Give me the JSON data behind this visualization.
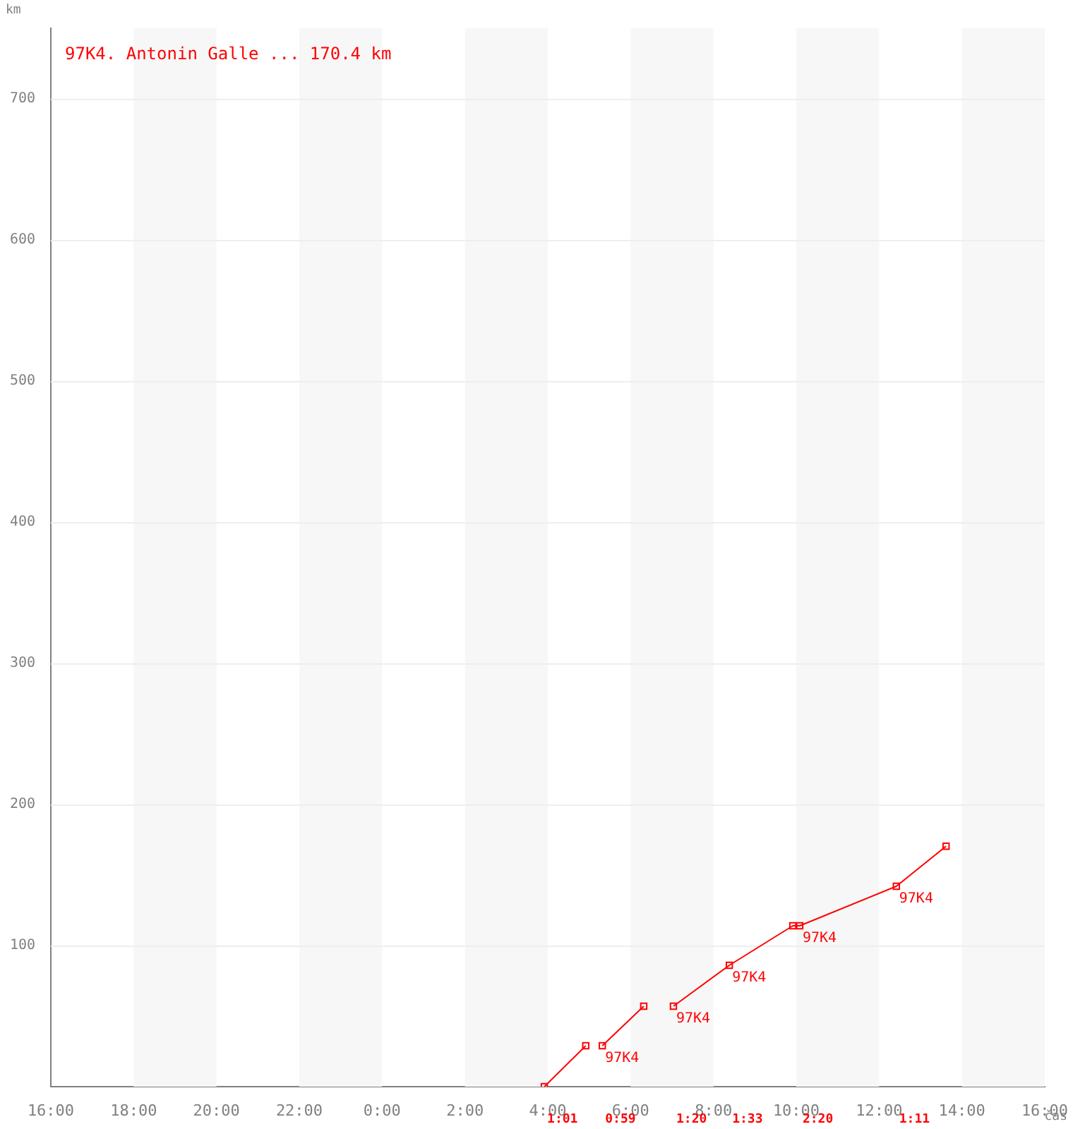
{
  "chart_data": {
    "type": "line",
    "title": "97K4. Antonin Galle ... 170.4 km",
    "xlabel": "čas",
    "ylabel": "km",
    "series": [
      {
        "color": "#ff0000",
        "x": [
          "--01-02T03:55",
          "--01-02T04:55"
        ],
        "values": [
          0,
          29
        ]
      },
      {
        "color": "#ff0000",
        "x": [
          "--01-02T05:19",
          "--01-02T06:19"
        ],
        "values": [
          29,
          57
        ]
      },
      {
        "color": "#ff0000",
        "x": [
          "--01-02T07:02",
          "--01-02T08:23",
          "--01-02T09:55",
          "--01-02T10:05",
          "--01-02T12:25",
          "--01-02T13:37"
        ],
        "values": [
          57,
          86,
          114,
          114,
          142,
          170.4
        ]
      }
    ],
    "xlim": [
      "--01-01T16:00",
      "--01-02T16:00"
    ],
    "xticks": [
      {
        "value": "--01-01T16:00",
        "label": "16:00"
      },
      {
        "value": "--01-01T18:00",
        "label": "18:00"
      },
      {
        "value": "--01-01T20:00",
        "label": "20:00"
      },
      {
        "value": "--01-01T22:00",
        "label": "22:00"
      },
      {
        "value": "--01-02T00:00",
        "label": "0:00"
      },
      {
        "value": "--01-02T02:00",
        "label": "2:00"
      },
      {
        "value": "--01-02T04:00",
        "label": "4:00"
      },
      {
        "value": "--01-02T06:00",
        "label": "6:00"
      },
      {
        "value": "--01-02T08:00",
        "label": "8:00"
      },
      {
        "value": "--01-02T10:00",
        "label": "10:00"
      },
      {
        "value": "--01-02T12:00",
        "label": "12:00"
      },
      {
        "value": "--01-02T14:00",
        "label": "14:00"
      },
      {
        "value": "--01-02T16:00",
        "label": "16:00"
      }
    ],
    "ylim": [
      0,
      750
    ],
    "yticks": [
      100,
      200,
      300,
      400,
      500,
      600,
      700
    ],
    "bands": [
      {
        "axis": "x",
        "from": "--01-01T18:00",
        "to": "--01-01T20:00",
        "color": "#f7f7f7"
      },
      {
        "axis": "x",
        "from": "--01-01T22:00",
        "to": "--01-02T00:00",
        "color": "#f7f7f7"
      },
      {
        "axis": "x",
        "from": "--01-02T02:00",
        "to": "--01-02T04:00",
        "color": "#f7f7f7"
      },
      {
        "axis": "x",
        "from": "--01-02T06:00",
        "to": "--01-02T08:00",
        "color": "#f7f7f7"
      },
      {
        "axis": "x",
        "from": "--01-02T10:00",
        "to": "--01-02T12:00",
        "color": "#f7f7f7"
      },
      {
        "axis": "x",
        "from": "--01-02T14:00",
        "to": "--01-02T16:00",
        "color": "#f7f7f7"
      }
    ],
    "annotations": [
      {
        "text": "97K4",
        "x": "--01-02T05:19",
        "y": 29
      },
      {
        "text": "97K4",
        "x": "--01-02T07:02",
        "y": 57
      },
      {
        "text": "97K4",
        "x": "--01-02T08:23",
        "y": 86
      },
      {
        "text": "97K4",
        "x": "--01-02T10:05",
        "y": 114
      },
      {
        "text": "97K4",
        "x": "--01-02T12:25",
        "y": 142
      },
      "1:01",
      "0:59",
      "1:20",
      "1:33",
      "2:20",
      "1:11"
    ],
    "grid": "y",
    "marker": "square",
    "line_style": "solid",
    "legend": false
  }
}
